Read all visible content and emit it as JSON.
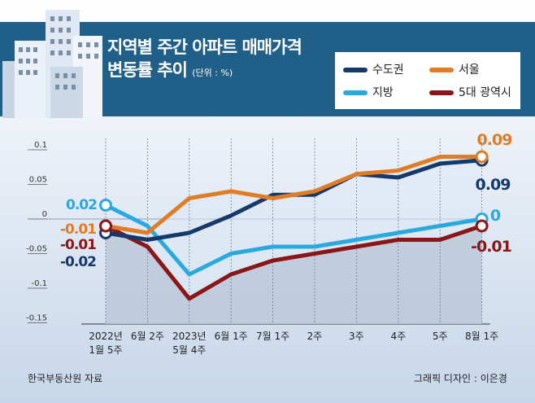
{
  "title_line1": "지역별 주간 아파트 매매가격",
  "title_line2": "변동률 추이",
  "unit": "(단위 : %)",
  "footer": {
    "source": "한국부동산원 자료",
    "credit": "그래픽 디자인 : 이은경"
  },
  "colors": {
    "band": "#1f5f88",
    "bg_top": "#ffffff",
    "bg_bottom": "#c7d6ea"
  },
  "chart_data": {
    "type": "line",
    "title": "지역별 주간 아파트 매매가격 변동률 추이",
    "unit": "%",
    "ylim": [
      -0.15,
      0.1
    ],
    "yticks": [
      {
        "value": 0.1,
        "label": "0.1"
      },
      {
        "value": 0.05,
        "label": "0.05"
      },
      {
        "value": 0,
        "label": "0"
      },
      {
        "value": -0.05,
        "label": "-0.05"
      },
      {
        "value": -0.1,
        "label": "-0.1"
      },
      {
        "value": -0.15,
        "label": "-0.15"
      }
    ],
    "categories": [
      [
        "2022년",
        "1월 5주"
      ],
      [
        "6월 2주"
      ],
      [
        "2023년",
        "5월 4주"
      ],
      [
        "6월 1주"
      ],
      [
        "7월 1주"
      ],
      [
        "2주"
      ],
      [
        "3주"
      ],
      [
        "4주"
      ],
      [
        "5주"
      ],
      [
        "8월 1주"
      ]
    ],
    "series": [
      {
        "name": "수도권",
        "color": "#16396b",
        "values": [
          -0.02,
          -0.03,
          -0.02,
          0.005,
          0.035,
          0.035,
          0.065,
          0.06,
          0.08,
          0.085
        ],
        "start_label": "-0.02",
        "end_label": "0.09"
      },
      {
        "name": "서울",
        "color": "#e07b26",
        "values": [
          -0.01,
          -0.02,
          0.03,
          0.04,
          0.03,
          0.04,
          0.065,
          0.07,
          0.09,
          0.09
        ],
        "start_label": "-0.01",
        "end_label": "0.09"
      },
      {
        "name": "지방",
        "color": "#2aa8e0",
        "values": [
          0.02,
          -0.01,
          -0.08,
          -0.05,
          -0.04,
          -0.04,
          -0.03,
          -0.02,
          -0.01,
          0.0
        ],
        "start_label": "0.02",
        "end_label": "0"
      },
      {
        "name": "5대 광역시",
        "color": "#8a1617",
        "values": [
          -0.01,
          -0.04,
          -0.115,
          -0.08,
          -0.06,
          -0.05,
          -0.04,
          -0.03,
          -0.03,
          -0.01
        ],
        "start_label": "-0.01",
        "end_label": "-0.01"
      }
    ]
  }
}
